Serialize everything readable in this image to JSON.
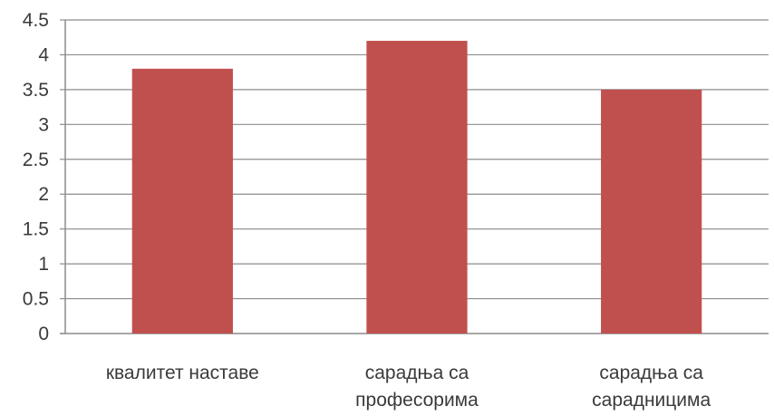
{
  "chart_data": {
    "type": "bar",
    "categories": [
      [
        "квалитет наставе"
      ],
      [
        "сарадња са",
        "професорима"
      ],
      [
        "сарадња са",
        "сарадницима"
      ]
    ],
    "values": [
      3.8,
      4.2,
      3.5
    ],
    "yticks": [
      "0",
      "0.5",
      "1",
      "1.5",
      "2",
      "2.5",
      "3",
      "3.5",
      "4",
      "4.5"
    ],
    "ylim": [
      0,
      4.5
    ],
    "grid": true,
    "bar_color": "#c0504d",
    "title": "",
    "xlabel": "",
    "ylabel": ""
  }
}
